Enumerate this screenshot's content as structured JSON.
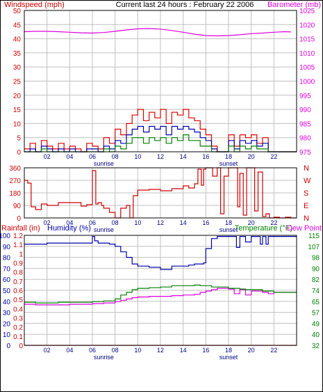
{
  "header": {
    "left_label": "Windspeed (mph)",
    "center_label": "Current last 24 hours : February 22 2006",
    "right_label": "Barometer (mb)"
  },
  "colors": {
    "wind_axis": "#cc0000",
    "baro": "#dd00dd",
    "wind_high": "#dd0000",
    "wind_mid": "#0000aa",
    "wind_low": "#008000",
    "dir": "#cc0000",
    "rain": "#cc0000",
    "humidity": "#0000aa",
    "temperature": "#008000",
    "dewpoint": "#dd00dd",
    "grid": "#c0c0c0",
    "frame": "#000000"
  },
  "chart_data": [
    {
      "type": "line",
      "name_left": "Windspeed (mph)",
      "name_right": "Barometer (mb)",
      "x_ticks": [
        "02",
        "04",
        "06",
        "08",
        "10",
        "12",
        "14",
        "16",
        "18",
        "20",
        "22"
      ],
      "sunrise_label": "sunrise",
      "sunset_label": "sunset",
      "sunrise_hour": 7,
      "sunset_hour": 18,
      "x_range": [
        0,
        24
      ],
      "ylim_left": [
        0,
        50
      ],
      "yticks_left": [
        "0",
        "5",
        "10",
        "15",
        "20",
        "25",
        "30",
        "35",
        "40",
        "45",
        "50"
      ],
      "ylim_right": [
        975,
        1025
      ],
      "yticks_right": [
        "975",
        "980",
        "985",
        "990",
        "995",
        "1000",
        "1005",
        "1010",
        "1015",
        "1020",
        "1025"
      ],
      "series": [
        {
          "name": "Barometer (mb)",
          "axis": "right",
          "style": "line",
          "x": [
            0,
            1,
            2,
            3,
            4,
            5,
            6,
            7,
            8,
            9,
            10,
            11,
            12,
            13,
            14,
            15,
            16,
            17,
            18,
            19,
            20,
            21,
            22,
            23,
            23.5
          ],
          "y": [
            1017.5,
            1017.6,
            1017.6,
            1017.5,
            1017.3,
            1017.1,
            1017.0,
            1017.2,
            1017.6,
            1018.1,
            1018.5,
            1018.6,
            1018.4,
            1017.9,
            1017.3,
            1016.6,
            1016.1,
            1016.0,
            1016.1,
            1016.4,
            1016.8,
            1017.0,
            1017.3,
            1017.5,
            1017.4
          ]
        },
        {
          "name": "Wind high",
          "axis": "left",
          "style": "step",
          "x": [
            0,
            0.5,
            1,
            1.5,
            2,
            2.5,
            3,
            3.5,
            4,
            4.5,
            5,
            5.5,
            6,
            6.5,
            7,
            7.5,
            8,
            8.5,
            9,
            9.5,
            10,
            10.5,
            11,
            11.5,
            12,
            12.5,
            13,
            13.5,
            14,
            14.5,
            15,
            15.5,
            16,
            16.5,
            17,
            17.5,
            18,
            18.5,
            19,
            19.5,
            20,
            20.5,
            21,
            21.5,
            22,
            22.5,
            23,
            23.5
          ],
          "y": [
            1,
            3,
            0,
            4,
            2,
            1,
            3,
            1,
            2,
            1,
            0,
            3,
            2,
            1,
            5,
            3,
            8,
            6,
            10,
            13,
            15,
            11,
            14,
            12,
            15,
            10,
            14,
            13,
            15,
            12,
            11,
            8,
            6,
            2,
            0,
            0,
            6,
            2,
            6,
            5,
            6,
            3,
            5,
            0,
            0,
            0,
            0,
            0
          ]
        },
        {
          "name": "Wind average",
          "axis": "left",
          "style": "step",
          "x": [
            0,
            0.5,
            1,
            1.5,
            2,
            2.5,
            3,
            3.5,
            4,
            4.5,
            5,
            5.5,
            6,
            6.5,
            7,
            7.5,
            8,
            8.5,
            9,
            9.5,
            10,
            10.5,
            11,
            11.5,
            12,
            12.5,
            13,
            13.5,
            14,
            14.5,
            15,
            15.5,
            16,
            16.5,
            17,
            17.5,
            18,
            18.5,
            19,
            19.5,
            20,
            20.5,
            21,
            21.5,
            22,
            22.5,
            23,
            23.5
          ],
          "y": [
            0,
            1,
            0,
            2,
            1,
            0,
            1,
            0,
            1,
            0,
            0,
            1,
            1,
            0,
            2,
            1,
            4,
            3,
            6,
            8,
            9,
            7,
            9,
            8,
            9,
            6,
            9,
            8,
            9,
            8,
            7,
            5,
            4,
            1,
            0,
            0,
            4,
            1,
            4,
            3,
            4,
            2,
            3,
            0,
            0,
            0,
            0,
            0
          ]
        },
        {
          "name": "Wind low",
          "axis": "left",
          "style": "step",
          "x": [
            0,
            0.5,
            1,
            1.5,
            2,
            2.5,
            3,
            3.5,
            4,
            4.5,
            5,
            5.5,
            6,
            6.5,
            7,
            7.5,
            8,
            8.5,
            9,
            9.5,
            10,
            10.5,
            11,
            11.5,
            12,
            12.5,
            13,
            13.5,
            14,
            14.5,
            15,
            15.5,
            16,
            16.5,
            17,
            17.5,
            18,
            18.5,
            19,
            19.5,
            20,
            20.5,
            21,
            21.5,
            22,
            22.5,
            23,
            23.5
          ],
          "y": [
            0,
            0,
            0,
            1,
            0,
            0,
            0,
            0,
            0,
            0,
            0,
            0,
            0,
            0,
            1,
            0,
            2,
            1,
            3,
            5,
            5,
            3,
            5,
            4,
            5,
            3,
            5,
            4,
            6,
            4,
            4,
            2,
            2,
            0,
            0,
            0,
            2,
            0,
            2,
            1,
            2,
            1,
            1,
            0,
            0,
            0,
            0,
            0
          ]
        }
      ]
    },
    {
      "type": "line",
      "name_left": "Wind direction (degrees)",
      "x_ticks": [
        "02",
        "04",
        "06",
        "08",
        "10",
        "12",
        "14",
        "16",
        "18",
        "20",
        "22"
      ],
      "sunrise_label": "sunrise",
      "sunset_label": "sunset",
      "x_range": [
        0,
        24
      ],
      "ylim_left": [
        0,
        360
      ],
      "yticks_left": [
        "0",
        "90",
        "180",
        "270",
        "360"
      ],
      "yticks_right": [
        "N",
        "E",
        "S",
        "W",
        "N"
      ],
      "series": [
        {
          "name": "Wind direction",
          "axis": "left",
          "style": "step",
          "x": [
            0,
            0.3,
            0.6,
            1,
            1.5,
            2,
            3,
            4,
            5,
            5.5,
            6,
            6.3,
            6.5,
            6.8,
            7,
            7.5,
            8,
            8.5,
            9,
            9.3,
            9.6,
            10,
            11,
            12,
            13,
            14,
            14.5,
            15,
            15.3,
            15.6,
            15.8,
            16,
            16.3,
            16.6,
            17,
            17.3,
            17.6,
            18,
            18.5,
            18.8,
            19,
            19.3,
            19.6,
            20,
            20.3,
            20.6,
            21,
            21.3,
            21.6,
            22,
            22.5,
            23,
            23.5
          ],
          "y": [
            270,
            250,
            80,
            60,
            100,
            90,
            110,
            110,
            85,
            95,
            340,
            100,
            110,
            90,
            70,
            40,
            0,
            70,
            90,
            0,
            160,
            200,
            205,
            195,
            210,
            230,
            215,
            245,
            350,
            235,
            350,
            360,
            360,
            300,
            360,
            30,
            300,
            360,
            360,
            80,
            320,
            20,
            360,
            360,
            50,
            330,
            10,
            30,
            0,
            5,
            0,
            5,
            0
          ]
        }
      ]
    },
    {
      "type": "line",
      "name_left": "Rainfall (in)",
      "name_left2": "Humidity (%)",
      "name_right": "Temperature (°F)",
      "name_right2": "Dew Point",
      "x_ticks": [
        "02",
        "04",
        "06",
        "08",
        "10",
        "12",
        "14",
        "16",
        "18",
        "20",
        "22"
      ],
      "sunrise_label": "sunrise",
      "sunset_label": "sunset",
      "x_range": [
        0,
        24
      ],
      "ylim_humidity": [
        0,
        100
      ],
      "yticks_humidity": [
        "0",
        "10",
        "20",
        "30",
        "40",
        "50",
        "60",
        "70",
        "80",
        "90",
        "100"
      ],
      "ylim_rain": [
        0,
        1.2
      ],
      "yticks_rain": [
        "0",
        "0.1",
        "0.2",
        "0.3",
        "0.4",
        "0.5",
        "0.6",
        "0.7",
        "0.8",
        "0.9",
        "1",
        "1.1",
        "1.2"
      ],
      "ylim_temp": [
        32,
        115
      ],
      "yticks_temp": [
        "32",
        "40",
        "49",
        "57",
        "65",
        "74",
        "82",
        "90",
        "98",
        "107",
        "115"
      ],
      "series": [
        {
          "name": "Humidity (%)",
          "axis": "humidity",
          "style": "step",
          "x": [
            0,
            1,
            2,
            3,
            4,
            5,
            5.8,
            6,
            6.2,
            6.5,
            7,
            7.5,
            8,
            8.5,
            9,
            9.5,
            10,
            11,
            12,
            13,
            14,
            14.5,
            15,
            15.5,
            15.8,
            16,
            16.5,
            17,
            18,
            18.5,
            18.7,
            19,
            19.5,
            20,
            20.5,
            20.8,
            21,
            21.3,
            21.5,
            22,
            23,
            23.5
          ],
          "y": [
            92,
            92,
            93,
            93,
            93,
            93,
            93,
            99,
            95,
            93,
            93,
            92,
            90,
            85,
            80,
            74,
            72,
            71,
            69,
            72,
            72,
            73,
            74,
            74,
            75,
            88,
            97,
            99,
            99,
            99,
            89,
            99,
            94,
            99,
            99,
            92,
            99,
            92,
            99,
            99,
            99,
            99
          ]
        },
        {
          "name": "Temperature (°F)",
          "axis": "temp",
          "style": "line",
          "x": [
            0,
            1,
            2,
            3,
            4,
            5,
            6,
            7,
            8,
            8.5,
            9,
            9.5,
            10,
            11,
            12,
            13,
            14,
            15,
            15.5,
            16,
            16.5,
            17,
            18,
            18.5,
            19,
            19.5,
            20,
            21,
            22,
            23,
            23.5
          ],
          "y": [
            64.5,
            64,
            64,
            64.5,
            64.5,
            64.5,
            65,
            65.5,
            67,
            70,
            72,
            74,
            75,
            75.5,
            76,
            77,
            77,
            77.5,
            77,
            77,
            76,
            76,
            75,
            75,
            74.5,
            74,
            74,
            73,
            72,
            72,
            72
          ]
        },
        {
          "name": "Dew Point",
          "axis": "temp",
          "style": "line",
          "x": [
            0,
            1,
            2,
            3,
            4,
            5,
            6,
            7,
            8,
            8.5,
            9,
            9.5,
            10,
            11,
            12,
            13,
            14,
            15,
            15.5,
            16,
            16.5,
            17,
            18,
            18.5,
            19,
            19.5,
            20,
            21,
            21.5,
            22,
            23,
            23.5
          ],
          "y": [
            63,
            62.5,
            62.5,
            62.5,
            63,
            63,
            63.5,
            64,
            65,
            66,
            67,
            68,
            68.5,
            69,
            69,
            69.5,
            70,
            70.5,
            72,
            73,
            74,
            75,
            74.5,
            71,
            74,
            70,
            73,
            72,
            71,
            72,
            72,
            72
          ]
        },
        {
          "name": "Rainfall (in)",
          "axis": "rain",
          "style": "line",
          "x": [
            0,
            24
          ],
          "y": [
            0,
            0
          ]
        }
      ]
    }
  ]
}
